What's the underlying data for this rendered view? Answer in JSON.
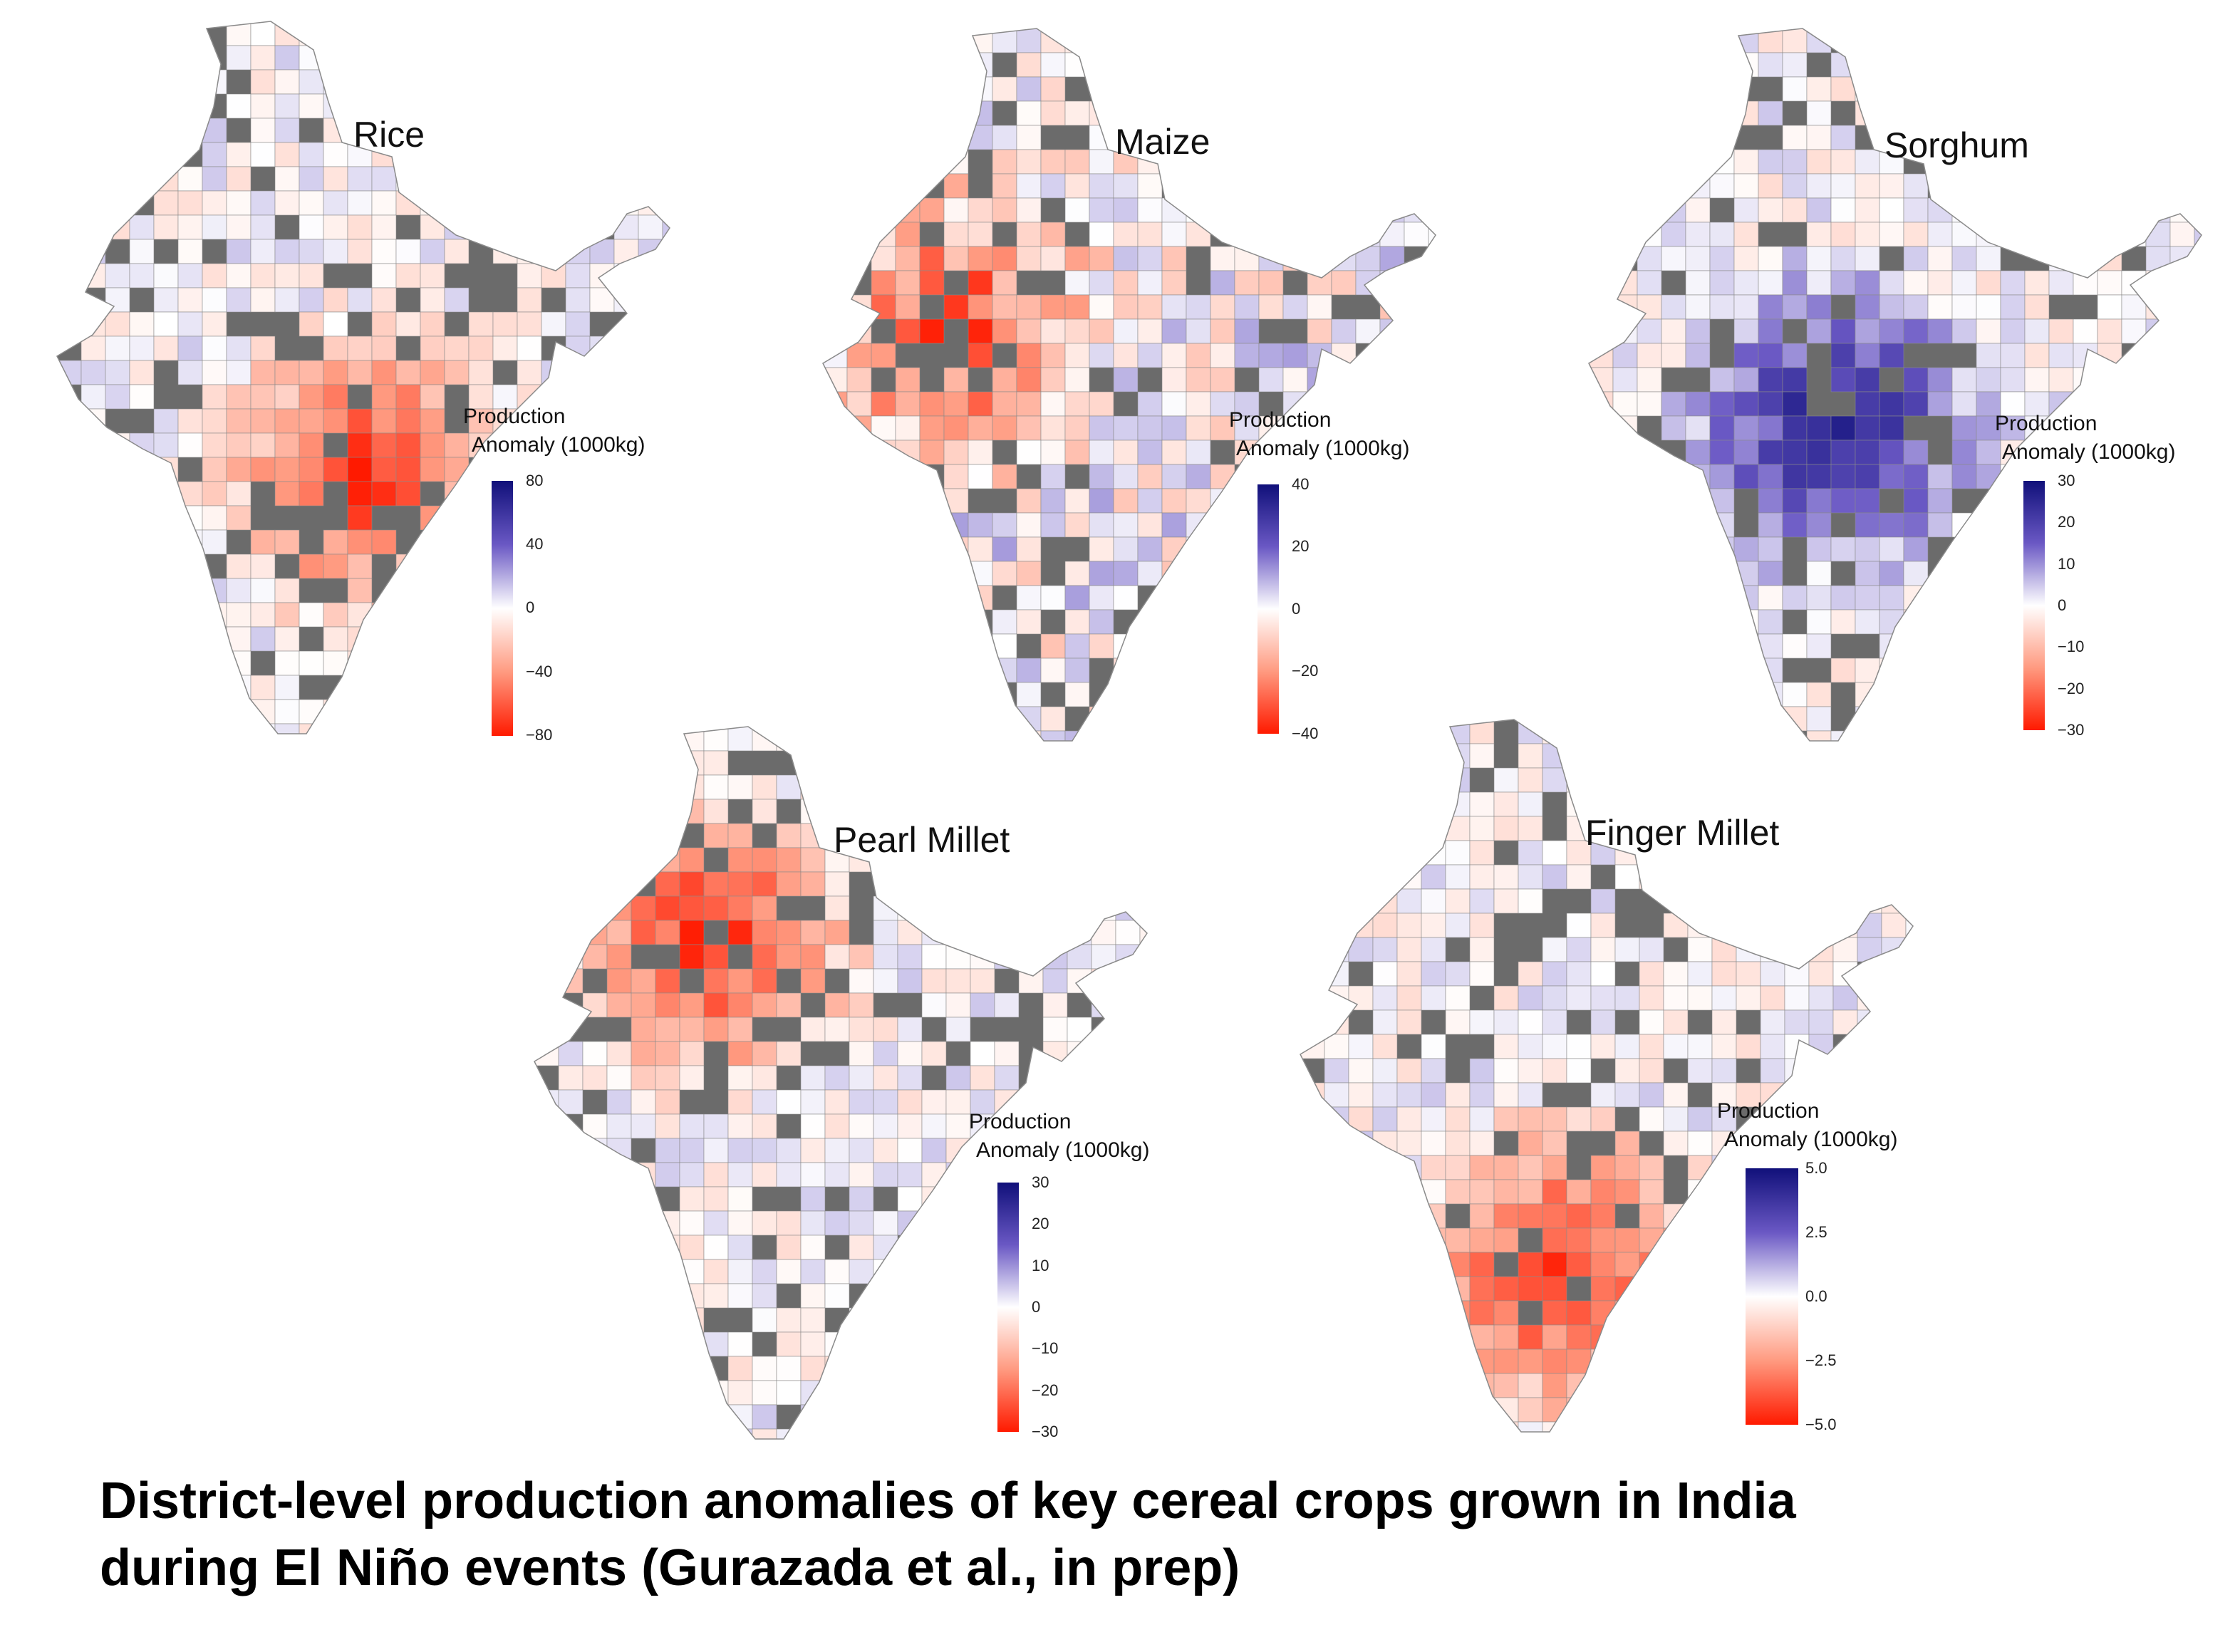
{
  "panels": [
    {
      "title": "Rice",
      "legend_line1": "Production",
      "legend_line2": "Anomaly (1000kg)",
      "ticks": [
        "80",
        "40",
        "0",
        "−40",
        "−80"
      ],
      "hot_region": "southeast",
      "dominant": "deficit"
    },
    {
      "title": "Maize",
      "legend_line1": "Production",
      "legend_line2": "Anomaly (1000kg)",
      "ticks": [
        "40",
        "20",
        "0",
        "−20",
        "−40"
      ],
      "hot_region": "scattered",
      "dominant": "mixed"
    },
    {
      "title": "Sorghum",
      "legend_line1": "Production",
      "legend_line2": "Anomaly (1000kg)",
      "ticks": [
        "30",
        "20",
        "10",
        "0",
        "−10",
        "−20",
        "−30"
      ],
      "hot_region": "central",
      "dominant": "surplus"
    },
    {
      "title": "Pearl Millet",
      "legend_line1": "Production",
      "legend_line2": "Anomaly (1000kg)",
      "ticks": [
        "30",
        "20",
        "10",
        "0",
        "−10",
        "−20",
        "−30"
      ],
      "hot_region": "northwest",
      "dominant": "deficit"
    },
    {
      "title": "Finger Millet",
      "legend_line1": "Production",
      "legend_line2": "Anomaly (1000kg)",
      "ticks": [
        "5.0",
        "2.5",
        "0.0",
        "−2.5",
        "−5.0"
      ],
      "hot_region": "south",
      "dominant": "deficit"
    }
  ],
  "caption": {
    "line1": "District-level production anomalies of key cereal crops grown in India",
    "line2": "during El Niño events (Gurazada et al., in prep)"
  },
  "colors": {
    "no_data": "#6b6b6b",
    "border": "#8a8a8a",
    "positive_max": "#10107a",
    "positive_mid": "#6a58c4",
    "zero": "#ffffff",
    "negative_mid": "#ff9a80",
    "negative_max": "#ff1a00"
  }
}
